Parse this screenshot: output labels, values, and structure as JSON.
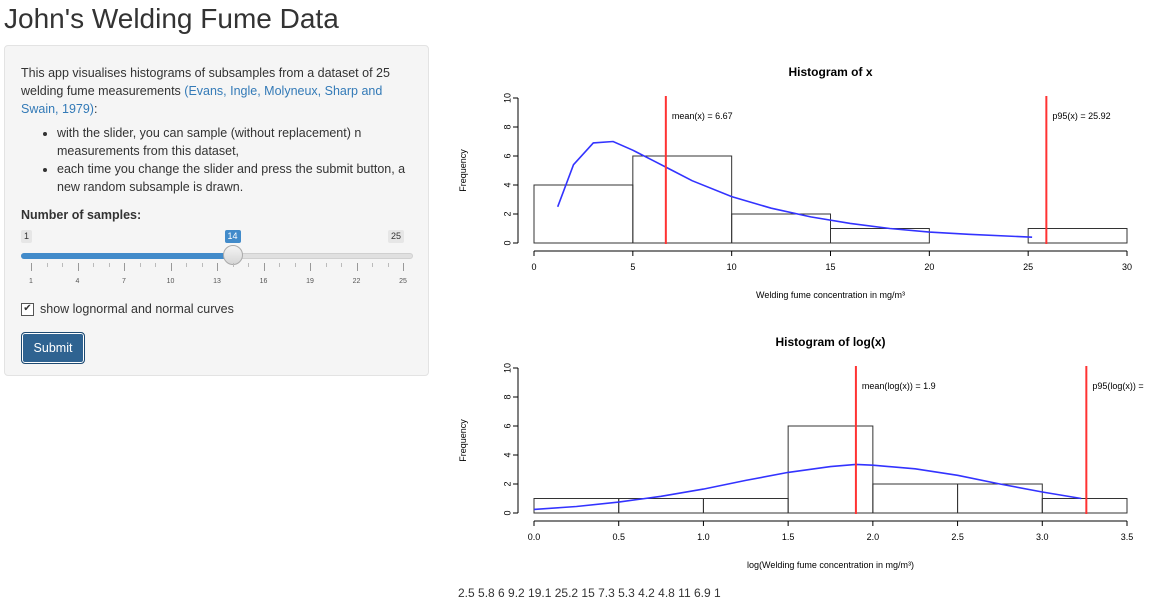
{
  "title": "John's Welding Fume Data",
  "sidebar": {
    "description_pre": "This app visualises histograms of subsamples from a dataset of 25 welding fume measurements ",
    "description_link": "(Evans, Ingle, Molyneux, Sharp and Swain, 1979)",
    "description_post": ":",
    "bullets": [
      "with the slider, you can sample (without replacement) n measurements from this dataset,",
      "each time you change the slider and press the submit button, a new random subsample is drawn."
    ],
    "slider_label": "Number of samples:",
    "slider": {
      "min": 1,
      "max": 25,
      "value": 14,
      "min_label": "1",
      "max_label": "25",
      "value_label": "14",
      "tick_labels": [
        "1",
        "4",
        "7",
        "10",
        "13",
        "16",
        "19",
        "22",
        "25"
      ]
    },
    "checkbox_label": "show lognormal and normal curves",
    "checkbox_checked": true,
    "submit_label": "Submit"
  },
  "samples_text": "2.5 5.8 6 9.2 19.1 25.2 15 7.3 5.3 4.2 4.8 11 6.9 1",
  "colors": {
    "vline": "#ff3333",
    "curve": "#3333ff",
    "accent": "#428bca",
    "button": "#2f6391"
  },
  "chart_data": [
    {
      "type": "bar",
      "title": "Histogram of x",
      "xlabel": "Welding fume concentration in mg/m³",
      "ylabel": "Frequency",
      "xlim": [
        0,
        30
      ],
      "ylim": [
        0,
        10
      ],
      "x_ticks": [
        0,
        5,
        10,
        15,
        20,
        25,
        30
      ],
      "x_tick_labels": [
        "0",
        "5",
        "10",
        "15",
        "20",
        "25",
        "30"
      ],
      "y_ticks": [
        0,
        2,
        4,
        6,
        8,
        10
      ],
      "y_tick_labels": [
        "0",
        "2",
        "4",
        "6",
        "8",
        "10"
      ],
      "bins": [
        {
          "start": 0,
          "end": 5,
          "count": 4
        },
        {
          "start": 5,
          "end": 10,
          "count": 6
        },
        {
          "start": 10,
          "end": 15,
          "count": 2
        },
        {
          "start": 15,
          "end": 20,
          "count": 1
        },
        {
          "start": 20,
          "end": 25,
          "count": 0
        },
        {
          "start": 25,
          "end": 30,
          "count": 1
        }
      ],
      "vlines": [
        {
          "x": 6.67,
          "label": "mean(x) =  6.67"
        },
        {
          "x": 25.92,
          "label": "p95(x) =  25.92"
        }
      ],
      "curve": {
        "kind": "lognormal",
        "x": [
          1.2,
          2,
          3,
          4,
          5,
          6,
          7,
          8,
          10,
          12,
          14,
          16,
          18,
          20,
          22,
          25.2
        ],
        "y": [
          2.5,
          5.4,
          6.9,
          7.0,
          6.4,
          5.7,
          5.0,
          4.3,
          3.2,
          2.4,
          1.8,
          1.35,
          1.0,
          0.75,
          0.6,
          0.4
        ]
      }
    },
    {
      "type": "bar",
      "title": "Histogram of log(x)",
      "xlabel": "log(Welding fume concentration in mg/m³)",
      "ylabel": "Frequency",
      "xlim": [
        0,
        3.5
      ],
      "ylim": [
        0,
        10
      ],
      "x_ticks": [
        0,
        0.5,
        1,
        1.5,
        2,
        2.5,
        3,
        3.5
      ],
      "x_tick_labels": [
        "0.0",
        "0.5",
        "1.0",
        "1.5",
        "2.0",
        "2.5",
        "3.0",
        "3.5"
      ],
      "y_ticks": [
        0,
        2,
        4,
        6,
        8,
        10
      ],
      "y_tick_labels": [
        "0",
        "2",
        "4",
        "6",
        "8",
        "10"
      ],
      "bins": [
        {
          "start": 0,
          "end": 0.5,
          "count": 1
        },
        {
          "start": 0.5,
          "end": 1,
          "count": 1
        },
        {
          "start": 1,
          "end": 1.5,
          "count": 1
        },
        {
          "start": 1.5,
          "end": 2,
          "count": 6
        },
        {
          "start": 2,
          "end": 2.5,
          "count": 2
        },
        {
          "start": 2.5,
          "end": 3,
          "count": 2
        },
        {
          "start": 3,
          "end": 3.5,
          "count": 1
        }
      ],
      "vlines": [
        {
          "x": 1.9,
          "label": "mean(log(x)) =  1.9"
        },
        {
          "x": 3.26,
          "label": "p95(log(x)) ="
        }
      ],
      "curve": {
        "kind": "normal",
        "x": [
          0,
          0.25,
          0.5,
          0.75,
          1,
          1.25,
          1.5,
          1.75,
          1.9,
          2,
          2.25,
          2.5,
          2.75,
          3,
          3.23
        ],
        "y": [
          0.25,
          0.45,
          0.75,
          1.15,
          1.65,
          2.25,
          2.8,
          3.2,
          3.35,
          3.3,
          3.05,
          2.6,
          2.0,
          1.45,
          1.0
        ]
      }
    }
  ]
}
